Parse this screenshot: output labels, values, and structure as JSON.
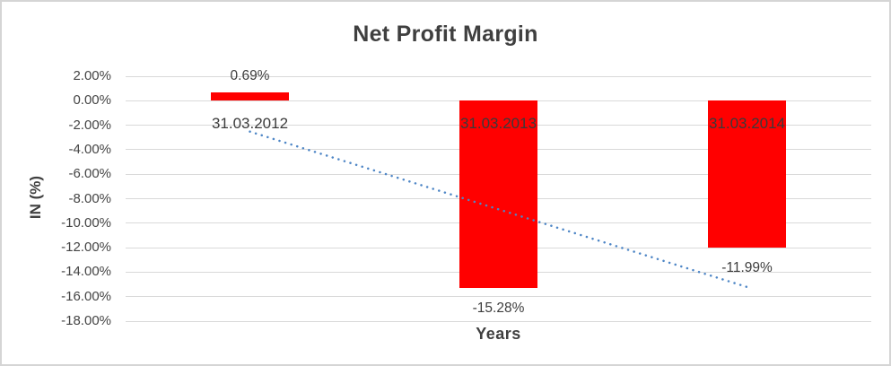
{
  "chart_data": {
    "type": "bar",
    "title": "Net Profit Margin",
    "xlabel": "Years",
    "ylabel": "IN (%)",
    "categories": [
      "31.03.2012",
      "31.03.2013",
      "31.03.2014"
    ],
    "values": [
      0.69,
      -15.28,
      -11.99
    ],
    "data_labels": [
      "0.69%",
      "-15.28%",
      "-11.99%"
    ],
    "yticks": [
      {
        "label": "2.00%",
        "value": 2
      },
      {
        "label": "0.00%",
        "value": 0
      },
      {
        "label": "-2.00%",
        "value": -2
      },
      {
        "label": "-4.00%",
        "value": -4
      },
      {
        "label": "-6.00%",
        "value": -6
      },
      {
        "label": "-8.00%",
        "value": -8
      },
      {
        "label": "-10.00%",
        "value": -10
      },
      {
        "label": "-12.00%",
        "value": -12
      },
      {
        "label": "-14.00%",
        "value": -14
      },
      {
        "label": "-16.00%",
        "value": -16
      },
      {
        "label": "-18.00%",
        "value": -18
      }
    ],
    "ylim": [
      -18,
      2
    ],
    "grid": "horizontal",
    "legend": "none",
    "bar_color": "#ff0000",
    "gridline_color": "#d9d9d9",
    "trendline": {
      "type": "linear",
      "style": "dotted",
      "color": "#4e86c6",
      "start_value": -2.52,
      "end_value": -15.21
    }
  }
}
